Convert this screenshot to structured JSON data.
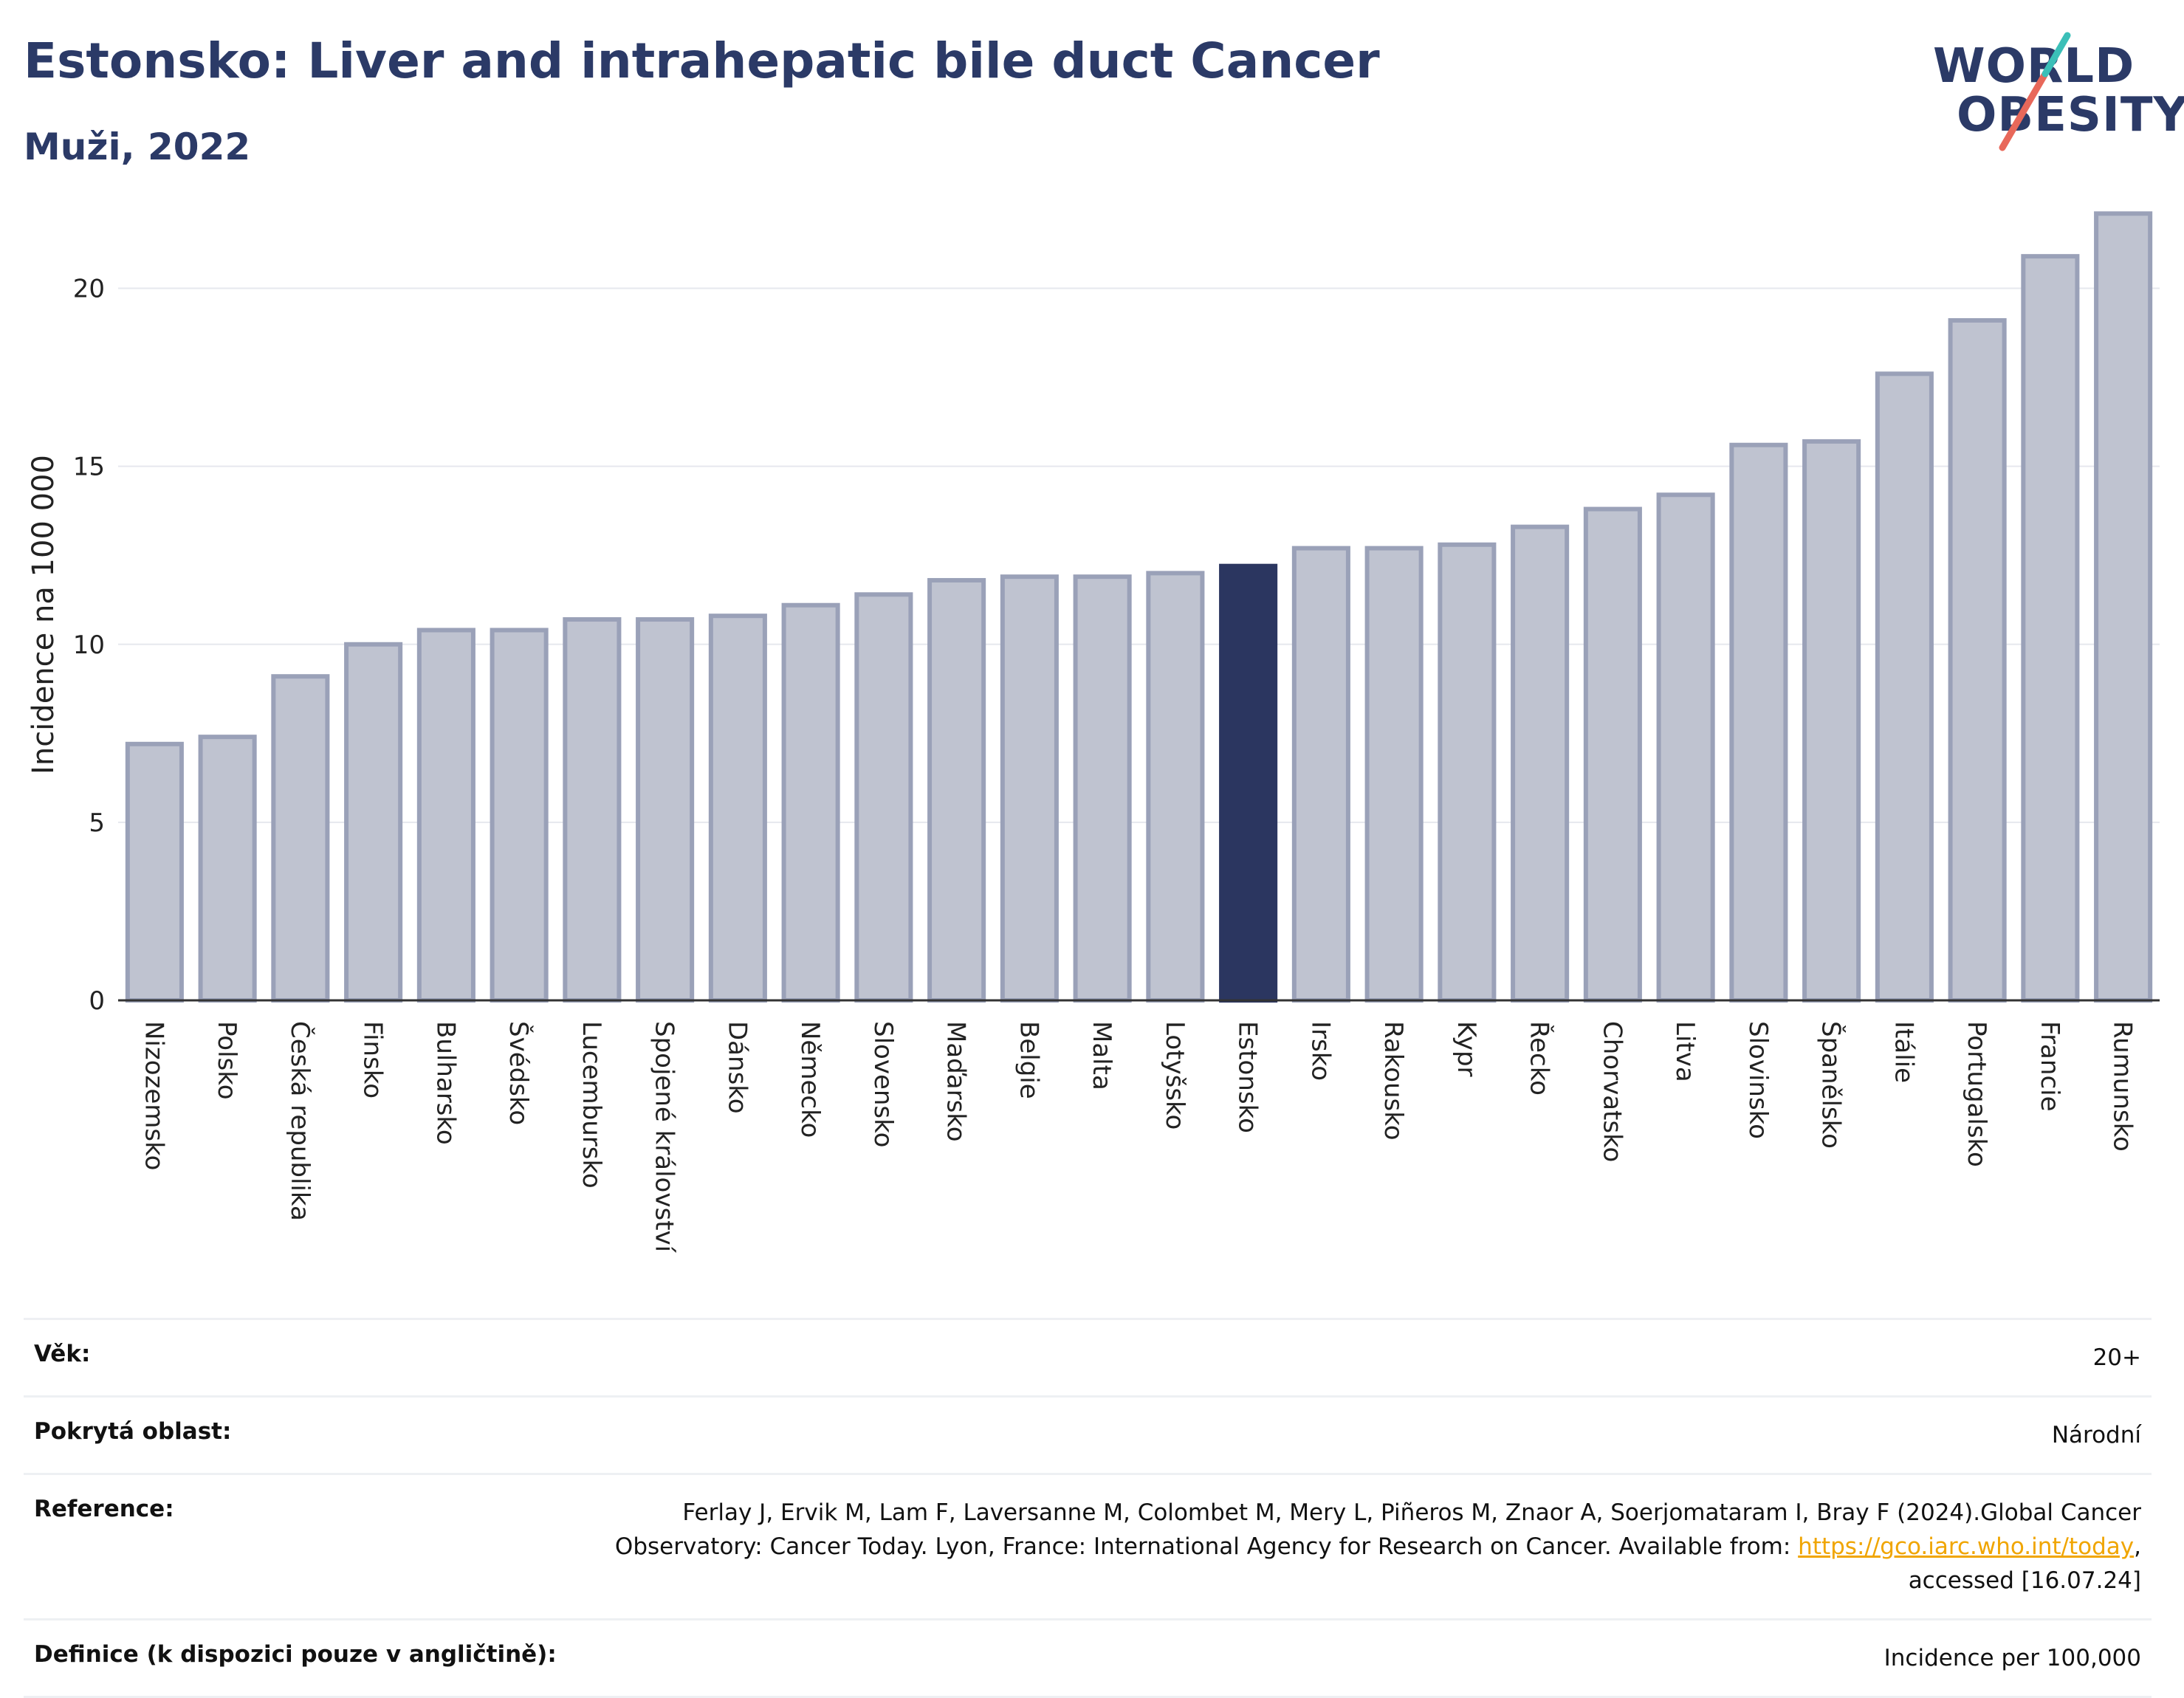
{
  "header": {
    "title": "Estonsko: Liver and intrahepatic bile duct Cancer",
    "subtitle": "Muži, 2022"
  },
  "logo": {
    "line1": "WORLD",
    "line2": "OBESITY",
    "colors": {
      "teal": "#3bbfb8",
      "coral": "#e8685a",
      "navy": "#2b3a67"
    }
  },
  "chart_data": {
    "type": "bar",
    "ylabel": "Incidence na 100 000",
    "xlabel": "",
    "ylim": [
      0,
      22.5
    ],
    "yticks": [
      0,
      5,
      10,
      15,
      20
    ],
    "grid": true,
    "highlight": "Estonsko",
    "colors": {
      "bar": "#bfc3d0",
      "bar_border": "#9aa1b8",
      "highlight": "#2b3660"
    },
    "categories": [
      "Nizozemsko",
      "Polsko",
      "Česká republika",
      "Finsko",
      "Bulharsko",
      "Švédsko",
      "Lucembursko",
      "Spojené království",
      "Dánsko",
      "Německo",
      "Slovensko",
      "Maďarsko",
      "Belgie",
      "Malta",
      "Lotyšsko",
      "Estonsko",
      "Irsko",
      "Rakousko",
      "Kypr",
      "Řecko",
      "Chorvatsko",
      "Litva",
      "Slovinsko",
      "Španělsko",
      "Itálie",
      "Portugalsko",
      "Francie",
      "Rumunsko"
    ],
    "values": [
      7.2,
      7.4,
      9.1,
      10.0,
      10.4,
      10.4,
      10.7,
      10.7,
      10.8,
      11.1,
      11.4,
      11.8,
      11.9,
      11.9,
      12.0,
      12.2,
      12.7,
      12.7,
      12.8,
      13.3,
      13.8,
      14.2,
      15.6,
      15.7,
      17.6,
      19.1,
      20.9,
      22.1
    ]
  },
  "info": {
    "age_label": "Věk:",
    "age_value": "20+",
    "area_label": "Pokrytá oblast:",
    "area_value": "Národní",
    "ref_label": "Reference:",
    "ref_line1": "Ferlay J, Ervik M, Lam F, Laversanne M, Colombet M, Mery L, Piñeros M, Znaor A, Soerjomataram I, Bray F (2024).Global Cancer",
    "ref_line2_pre": "Observatory: Cancer Today. Lyon, France: International Agency for Research on Cancer. Available from: ",
    "ref_link": "https://gco.iarc.who.int/today",
    "ref_line2_post": ",",
    "ref_line3": "accessed [16.07.24]",
    "def_label": "Definice (k dispozici pouze v angličtině):",
    "def_value": "Incidence per 100,000"
  }
}
